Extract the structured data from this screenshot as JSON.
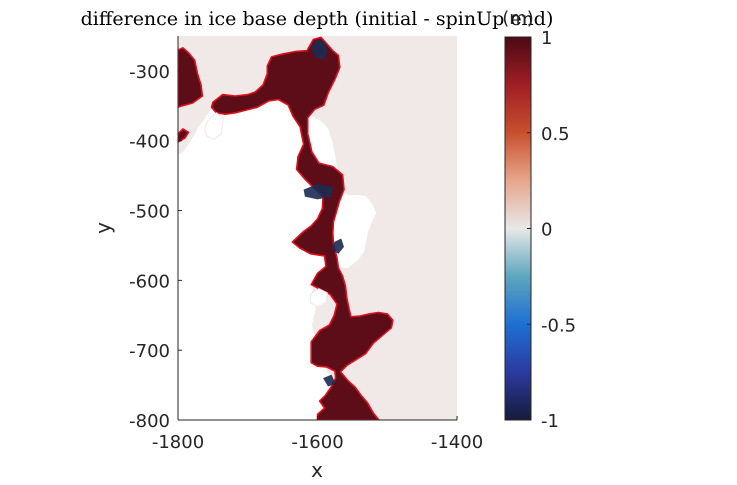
{
  "chart_data": {
    "type": "heatmap",
    "title": "difference in ice base depth (initial - spinUp end)",
    "xlabel": "x",
    "ylabel": "y",
    "xlim": [
      -1800,
      -1400
    ],
    "ylim": [
      -800,
      -250
    ],
    "xticks": [
      -1800,
      -1600,
      -1400
    ],
    "yticks": [
      -300,
      -400,
      -500,
      -600,
      -700,
      -800
    ],
    "grid": false,
    "colorbar": {
      "label": "(m)",
      "clim": [
        -1,
        1
      ],
      "ticks": [
        1,
        0.5,
        0,
        -0.5,
        -1
      ],
      "tick_labels": [
        "1",
        "0.5",
        "0",
        "-0.5",
        "-1"
      ],
      "colormap": [
        "#161c3a",
        "#2c3aa0",
        "#1e6fd3",
        "#5ea6bd",
        "#e8e8e8",
        "#e6a68c",
        "#c8502e",
        "#a01e26",
        "#4b0a14"
      ],
      "position": "right"
    },
    "colors": {
      "background_field": "#f1e8e8",
      "positive_region": "#5c0d18",
      "negative_patches": "#1c2a52",
      "region_outline": "#e0101c",
      "no_data": "#ffffff"
    },
    "regions": [
      {
        "sign": "positive",
        "value": 1,
        "outline": [
          [
            -1800,
            -270
          ],
          [
            -1793,
            -267
          ],
          [
            -1784,
            -275
          ],
          [
            -1776,
            -285
          ],
          [
            -1772,
            -304
          ],
          [
            -1767,
            -320
          ],
          [
            -1765,
            -336
          ],
          [
            -1779,
            -346
          ],
          [
            -1794,
            -350
          ],
          [
            -1800,
            -352
          ]
        ]
      },
      {
        "sign": "positive",
        "value": 1,
        "outline": [
          [
            -1800,
            -390
          ],
          [
            -1793,
            -383
          ],
          [
            -1785,
            -388
          ],
          [
            -1790,
            -396
          ],
          [
            -1800,
            -402
          ]
        ]
      },
      {
        "sign": "positive",
        "value": 1,
        "outline": [
          [
            -1750,
            -345
          ],
          [
            -1736,
            -334
          ],
          [
            -1718,
            -336
          ],
          [
            -1700,
            -334
          ],
          [
            -1689,
            -330
          ],
          [
            -1678,
            -320
          ],
          [
            -1672,
            -304
          ],
          [
            -1672,
            -293
          ],
          [
            -1666,
            -280
          ],
          [
            -1651,
            -276
          ],
          [
            -1631,
            -272
          ],
          [
            -1615,
            -271
          ],
          [
            -1606,
            -255
          ],
          [
            -1595,
            -252
          ],
          [
            -1586,
            -262
          ],
          [
            -1578,
            -271
          ],
          [
            -1570,
            -278
          ],
          [
            -1568,
            -295
          ],
          [
            -1575,
            -312
          ],
          [
            -1585,
            -332
          ],
          [
            -1591,
            -349
          ],
          [
            -1604,
            -355
          ],
          [
            -1614,
            -367
          ],
          [
            -1614,
            -390
          ],
          [
            -1608,
            -416
          ],
          [
            -1598,
            -432
          ],
          [
            -1578,
            -437
          ],
          [
            -1564,
            -449
          ],
          [
            -1562,
            -470
          ],
          [
            -1569,
            -488
          ],
          [
            -1572,
            -499
          ],
          [
            -1577,
            -516
          ],
          [
            -1578,
            -532
          ],
          [
            -1577,
            -548
          ],
          [
            -1572,
            -568
          ],
          [
            -1570,
            -582
          ],
          [
            -1564,
            -594
          ],
          [
            -1560,
            -608
          ],
          [
            -1558,
            -625
          ],
          [
            -1555,
            -640
          ],
          [
            -1552,
            -652
          ],
          [
            -1539,
            -651
          ],
          [
            -1526,
            -648
          ],
          [
            -1513,
            -646
          ],
          [
            -1500,
            -648
          ],
          [
            -1492,
            -657
          ],
          [
            -1494,
            -668
          ],
          [
            -1506,
            -678
          ],
          [
            -1520,
            -690
          ],
          [
            -1531,
            -705
          ],
          [
            -1544,
            -713
          ],
          [
            -1558,
            -722
          ],
          [
            -1567,
            -731
          ],
          [
            -1556,
            -744
          ],
          [
            -1546,
            -753
          ],
          [
            -1538,
            -764
          ],
          [
            -1528,
            -776
          ],
          [
            -1520,
            -790
          ],
          [
            -1512,
            -800
          ],
          [
            -1600,
            -800
          ],
          [
            -1600,
            -792
          ],
          [
            -1590,
            -783
          ],
          [
            -1597,
            -773
          ],
          [
            -1589,
            -765
          ],
          [
            -1580,
            -752
          ],
          [
            -1574,
            -740
          ],
          [
            -1575,
            -730
          ],
          [
            -1587,
            -724
          ],
          [
            -1600,
            -723
          ],
          [
            -1609,
            -718
          ],
          [
            -1609,
            -703
          ],
          [
            -1609,
            -688
          ],
          [
            -1597,
            -672
          ],
          [
            -1583,
            -664
          ],
          [
            -1576,
            -650
          ],
          [
            -1572,
            -634
          ],
          [
            -1582,
            -620
          ],
          [
            -1596,
            -613
          ],
          [
            -1609,
            -606
          ],
          [
            -1600,
            -590
          ],
          [
            -1588,
            -580
          ],
          [
            -1590,
            -565
          ],
          [
            -1610,
            -562
          ],
          [
            -1625,
            -554
          ],
          [
            -1636,
            -545
          ],
          [
            -1620,
            -530
          ],
          [
            -1609,
            -522
          ],
          [
            -1600,
            -512
          ],
          [
            -1593,
            -497
          ],
          [
            -1592,
            -480
          ],
          [
            -1603,
            -470
          ],
          [
            -1618,
            -455
          ],
          [
            -1630,
            -441
          ],
          [
            -1628,
            -423
          ],
          [
            -1620,
            -405
          ],
          [
            -1625,
            -380
          ],
          [
            -1635,
            -365
          ],
          [
            -1642,
            -349
          ],
          [
            -1656,
            -341
          ],
          [
            -1670,
            -343
          ],
          [
            -1686,
            -352
          ],
          [
            -1702,
            -356
          ],
          [
            -1718,
            -360
          ],
          [
            -1732,
            -362
          ],
          [
            -1745,
            -360
          ],
          [
            -1752,
            -352
          ]
        ]
      }
    ],
    "negative_patches": [
      {
        "value": -1,
        "outline": [
          [
            -1610,
            -265
          ],
          [
            -1600,
            -255
          ],
          [
            -1590,
            -258
          ],
          [
            -1585,
            -272
          ],
          [
            -1592,
            -285
          ],
          [
            -1604,
            -280
          ]
        ]
      },
      {
        "value": -1,
        "outline": [
          [
            -1620,
            -470
          ],
          [
            -1600,
            -462
          ],
          [
            -1578,
            -466
          ],
          [
            -1580,
            -480
          ],
          [
            -1600,
            -484
          ],
          [
            -1618,
            -480
          ]
        ]
      },
      {
        "value": -1,
        "outline": [
          [
            -1576,
            -545
          ],
          [
            -1566,
            -540
          ],
          [
            -1562,
            -552
          ],
          [
            -1570,
            -562
          ],
          [
            -1580,
            -556
          ]
        ]
      },
      {
        "value": -1,
        "outline": [
          [
            -1592,
            -740
          ],
          [
            -1580,
            -735
          ],
          [
            -1574,
            -748
          ],
          [
            -1585,
            -752
          ]
        ]
      }
    ],
    "no_data_islands": [
      {
        "outline": [
          [
            -1758,
            -372
          ],
          [
            -1745,
            -360
          ],
          [
            -1735,
            -368
          ],
          [
            -1738,
            -390
          ],
          [
            -1748,
            -398
          ],
          [
            -1758,
            -394
          ],
          [
            -1762,
            -384
          ]
        ]
      },
      {
        "outline": [
          [
            -1610,
            -620
          ],
          [
            -1598,
            -612
          ],
          [
            -1586,
            -618
          ],
          [
            -1588,
            -632
          ],
          [
            -1600,
            -638
          ],
          [
            -1610,
            -632
          ]
        ]
      }
    ]
  }
}
